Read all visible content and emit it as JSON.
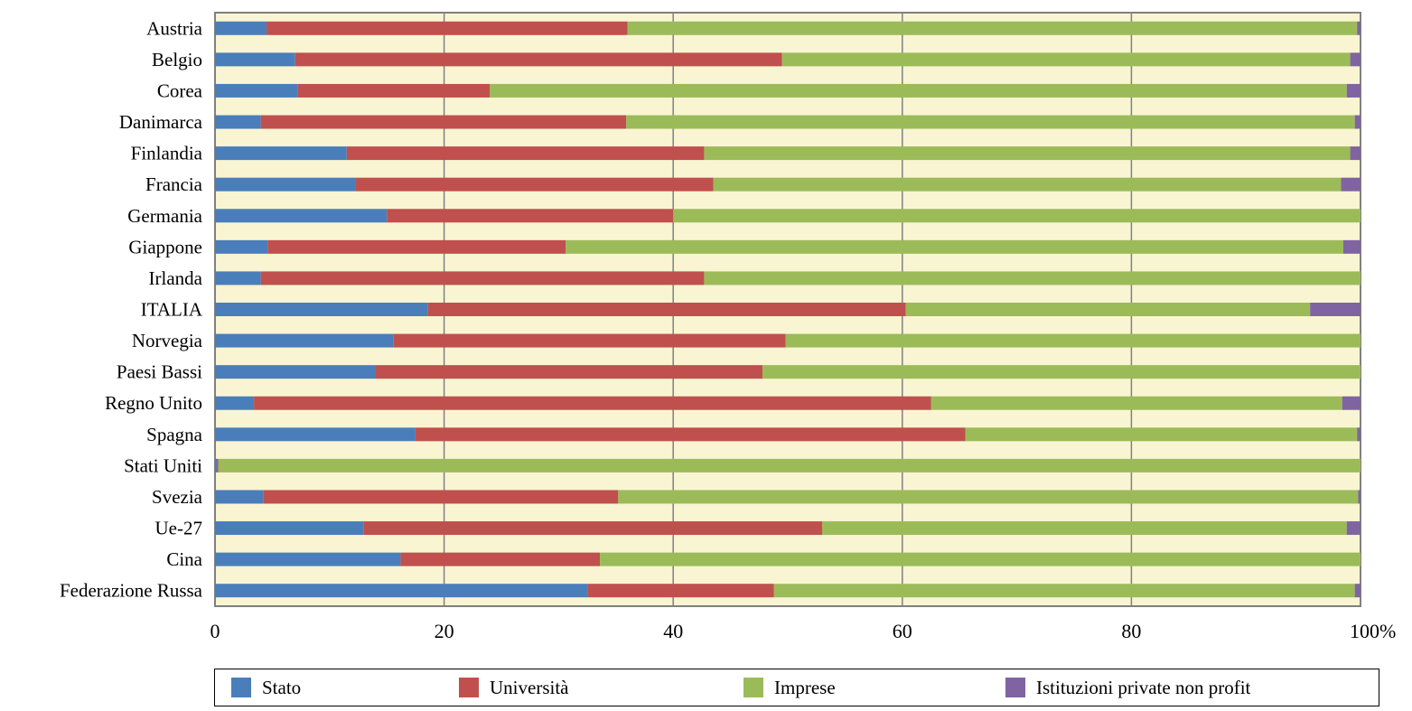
{
  "chart_data": {
    "type": "bar",
    "orientation": "horizontal",
    "stacked": true,
    "categories": [
      "Austria",
      "Belgio",
      "Corea",
      "Danimarca",
      "Finlandia",
      "Francia",
      "Germania",
      "Giappone",
      "Irlanda",
      "ITALIA",
      "Norvegia",
      "Paesi Bassi",
      "Regno Unito",
      "Spagna",
      "Stati Uniti",
      "Svezia",
      "Ue-27",
      "Cina",
      "Federazione Russa"
    ],
    "series": [
      {
        "name": "Stato",
        "color": "#4a7ebb",
        "values": [
          4.5,
          7.0,
          7.2,
          4.0,
          11.5,
          12.3,
          15.0,
          4.6,
          4.0,
          18.6,
          15.6,
          14.0,
          3.4,
          17.5,
          0.2,
          4.2,
          13.0,
          16.2,
          32.5
        ]
      },
      {
        "name": "Università",
        "color": "#c0504d",
        "values": [
          31.5,
          42.5,
          16.8,
          31.9,
          31.2,
          31.2,
          25.0,
          26.0,
          38.7,
          41.7,
          34.2,
          33.8,
          59.1,
          48.0,
          0.1,
          31.0,
          40.0,
          17.4,
          16.3
        ]
      },
      {
        "name": "Imprese",
        "color": "#9bbb59",
        "values": [
          63.7,
          49.6,
          74.8,
          63.6,
          56.4,
          54.8,
          60.0,
          67.9,
          57.3,
          35.3,
          50.2,
          52.2,
          35.9,
          34.2,
          99.7,
          64.6,
          45.8,
          66.4,
          50.7
        ]
      },
      {
        "name": "Istituzioni private non profit",
        "color": "#8064a2",
        "values": [
          0.3,
          0.9,
          1.2,
          0.5,
          0.9,
          1.7,
          0.0,
          1.5,
          0.0,
          4.4,
          0.0,
          0.0,
          1.6,
          0.3,
          0.0,
          0.2,
          1.2,
          0.0,
          0.5
        ]
      }
    ],
    "xlim": [
      0,
      100
    ],
    "x_ticks": [
      "0",
      "20",
      "40",
      "60",
      "80",
      "100%"
    ],
    "grid": true,
    "legend_position": "bottom",
    "plot_background": "#f9f5d2"
  }
}
